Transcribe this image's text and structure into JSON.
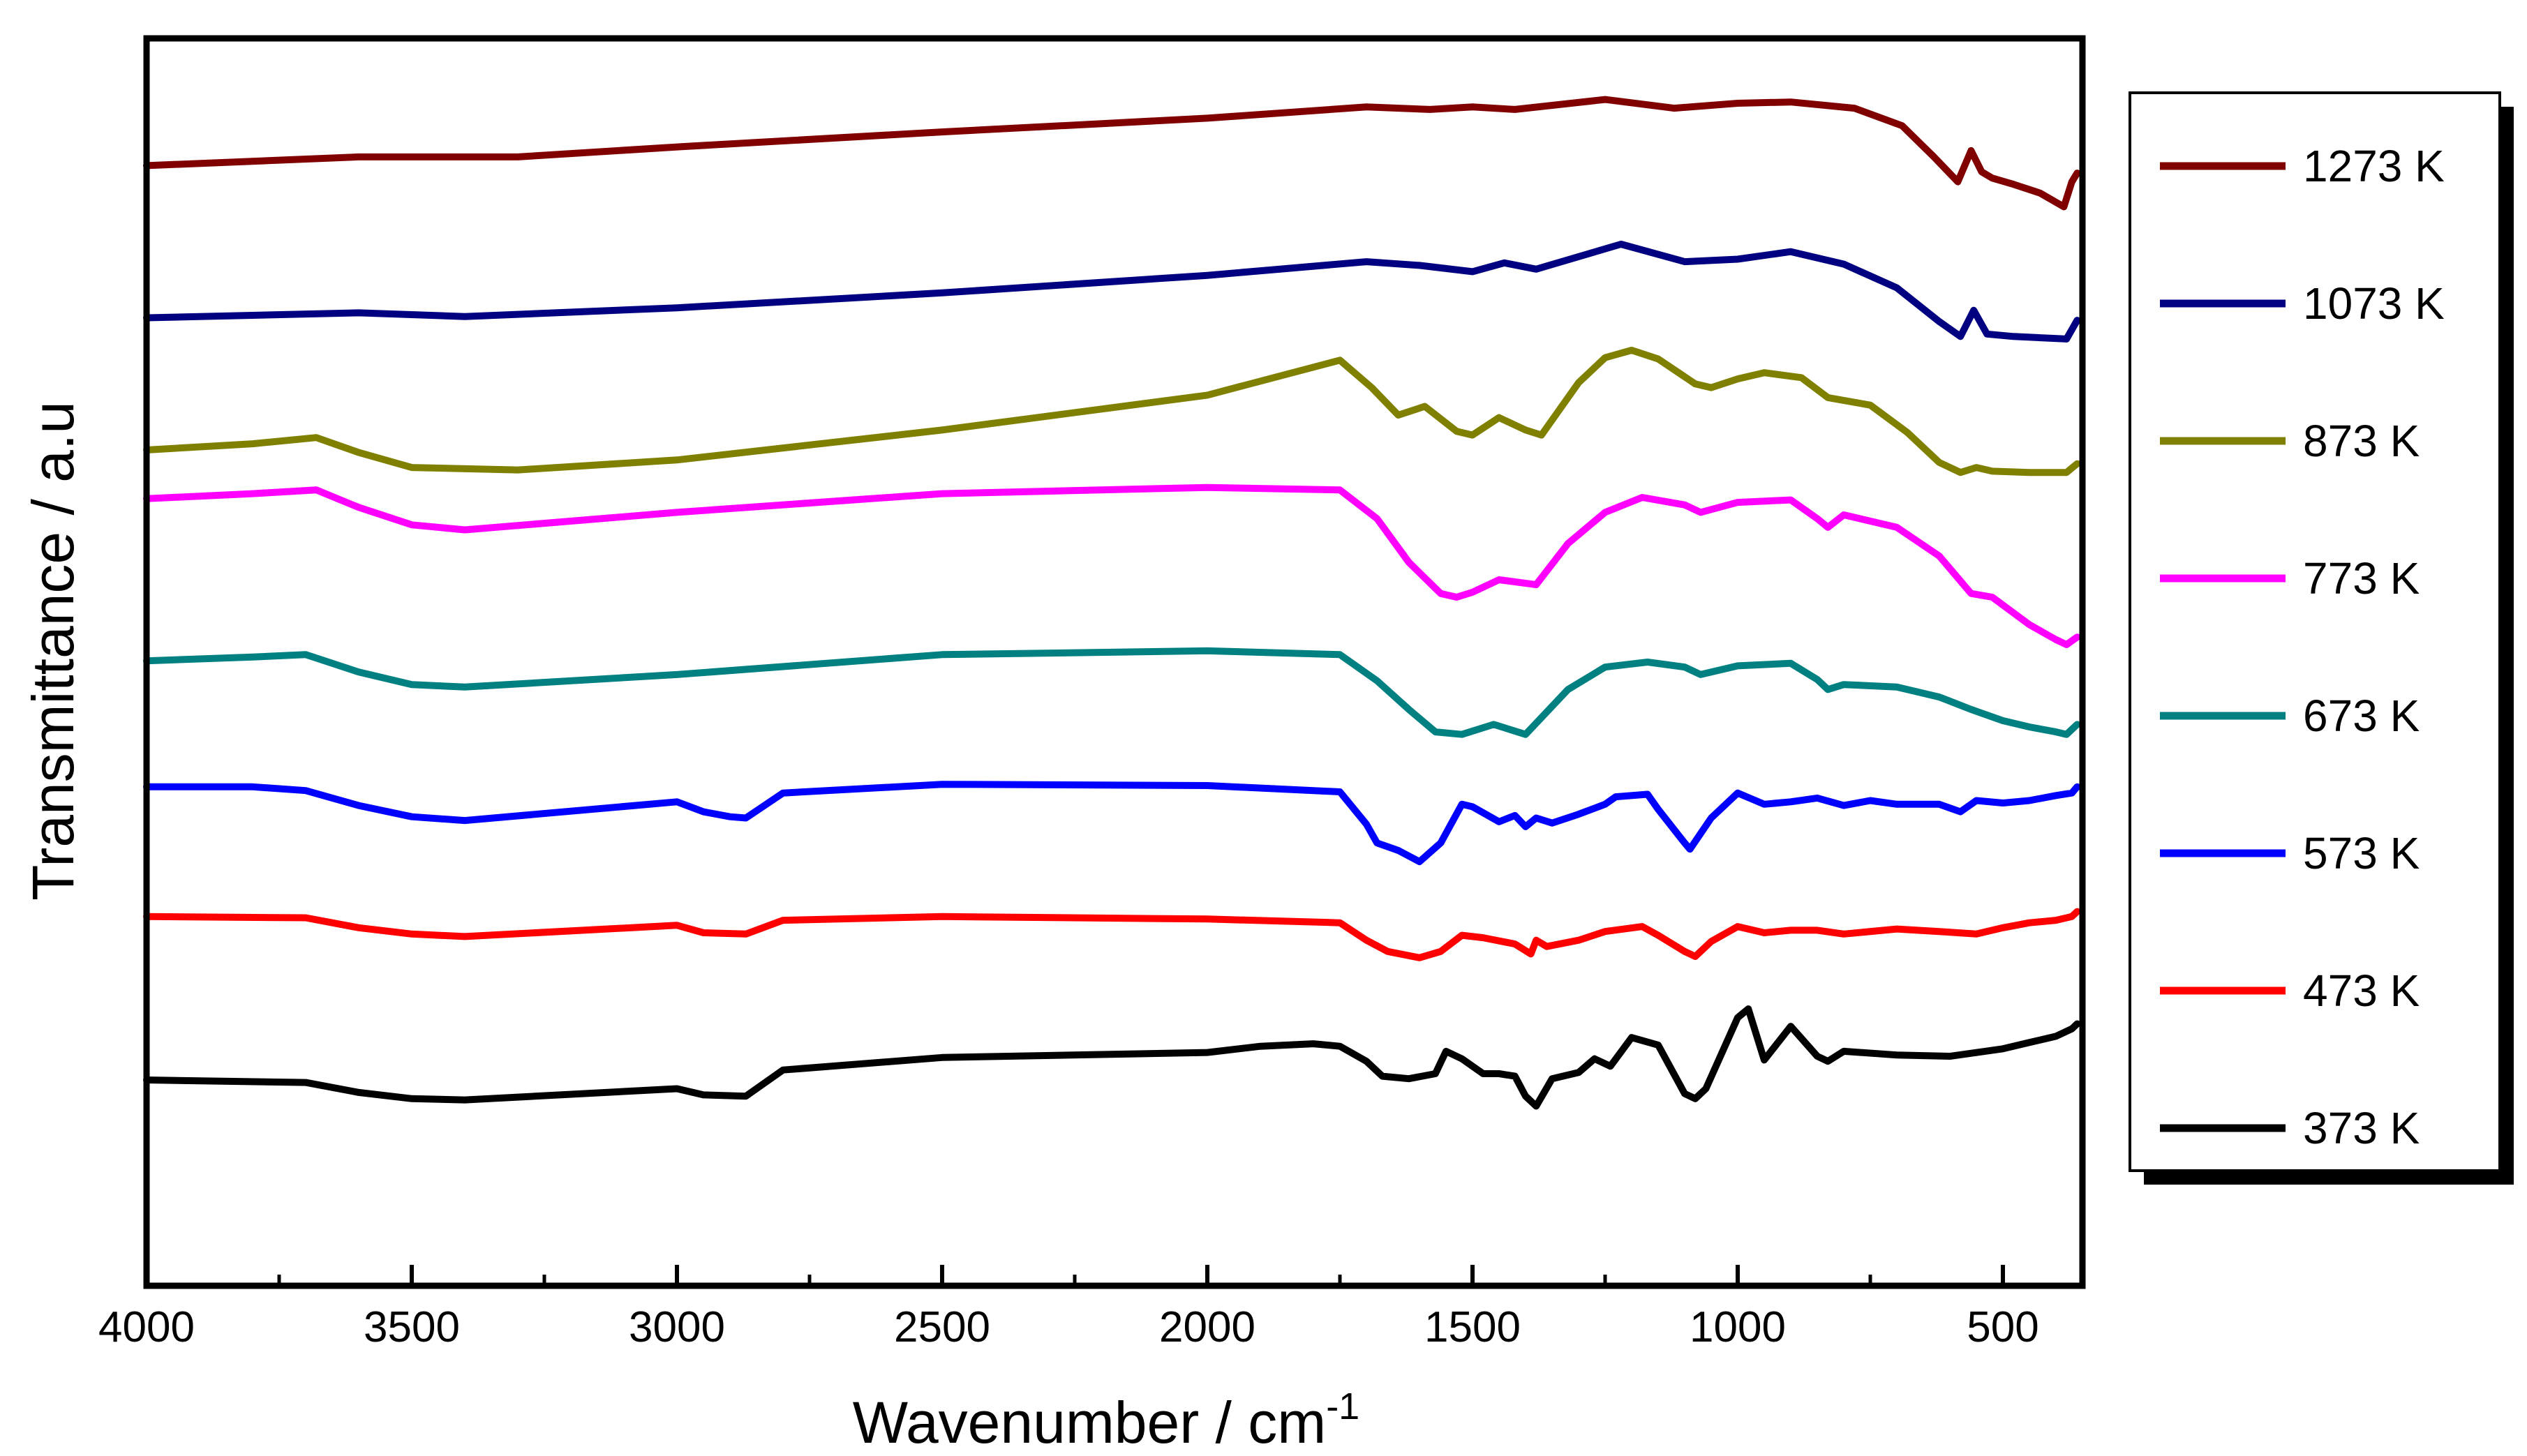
{
  "chart_data": {
    "type": "line",
    "title": "",
    "xlabel": "Wavenumber / cm",
    "xlabel_superscript": "-1",
    "ylabel": "Transmittance / a.u",
    "xlim": [
      4000,
      350
    ],
    "x_reversed": true,
    "ylim": [
      0,
      100
    ],
    "y_ticks_shown": false,
    "x_ticks": [
      4000,
      3500,
      3000,
      2500,
      2000,
      1500,
      1000,
      500
    ],
    "grid": false,
    "legend_position": "right",
    "series": [
      {
        "name": "1273 K",
        "color": "#800000",
        "x": [
          4000,
          3600,
          3300,
          3000,
          2500,
          2000,
          1700,
          1580,
          1500,
          1420,
          1250,
          1120,
          1000,
          900,
          780,
          690,
          630,
          585,
          560,
          540,
          520,
          480,
          430,
          385,
          370,
          360
        ],
        "y": [
          89.8,
          90.5,
          90.5,
          91.3,
          92.5,
          93.6,
          94.5,
          94.3,
          94.5,
          94.3,
          95.1,
          94.4,
          94.8,
          94.9,
          94.4,
          93.0,
          90.5,
          88.5,
          91.0,
          89.3,
          88.8,
          88.3,
          87.6,
          86.5,
          88.5,
          89.2
        ]
      },
      {
        "name": "1073 K",
        "color": "#000080",
        "x": [
          4000,
          3600,
          3400,
          3000,
          2500,
          2000,
          1700,
          1600,
          1500,
          1440,
          1380,
          1220,
          1100,
          1000,
          900,
          800,
          700,
          620,
          580,
          555,
          530,
          480,
          430,
          380,
          360
        ],
        "y": [
          77.6,
          78.0,
          77.7,
          78.4,
          79.6,
          81.0,
          82.1,
          81.8,
          81.3,
          82.0,
          81.5,
          83.5,
          82.1,
          82.3,
          82.9,
          81.9,
          80.0,
          77.3,
          76.1,
          78.2,
          76.3,
          76.1,
          76.0,
          75.9,
          77.4
        ]
      },
      {
        "name": "873 K",
        "color": "#808000",
        "x": [
          4000,
          3800,
          3680,
          3600,
          3500,
          3300,
          3000,
          2500,
          2000,
          1750,
          1690,
          1640,
          1590,
          1530,
          1500,
          1450,
          1400,
          1370,
          1300,
          1250,
          1200,
          1150,
          1080,
          1050,
          1000,
          950,
          880,
          830,
          750,
          680,
          620,
          580,
          550,
          520,
          450,
          380,
          360
        ],
        "y": [
          67.0,
          67.5,
          68.0,
          66.8,
          65.6,
          65.4,
          66.2,
          68.6,
          71.4,
          74.2,
          72.0,
          69.8,
          70.5,
          68.5,
          68.2,
          69.6,
          68.6,
          68.2,
          72.4,
          74.4,
          75.0,
          74.3,
          72.3,
          72.0,
          72.7,
          73.2,
          72.8,
          71.2,
          70.6,
          68.4,
          66.0,
          65.2,
          65.6,
          65.3,
          65.2,
          65.2,
          65.9
        ]
      },
      {
        "name": "773 K",
        "color": "#ff00ff",
        "x": [
          4000,
          3800,
          3680,
          3600,
          3500,
          3400,
          3000,
          2500,
          2000,
          1750,
          1680,
          1620,
          1560,
          1530,
          1500,
          1450,
          1380,
          1320,
          1250,
          1180,
          1100,
          1070,
          1000,
          900,
          850,
          830,
          800,
          700,
          620,
          560,
          520,
          450,
          400,
          380,
          360
        ],
        "y": [
          63.1,
          63.5,
          63.8,
          62.4,
          61.0,
          60.6,
          62.0,
          63.5,
          64.0,
          63.8,
          61.5,
          58.0,
          55.5,
          55.2,
          55.6,
          56.6,
          56.2,
          59.5,
          62.0,
          63.2,
          62.6,
          62.0,
          62.8,
          63.0,
          61.5,
          60.8,
          61.8,
          60.8,
          58.5,
          55.5,
          55.2,
          53.0,
          51.8,
          51.4,
          52.0
        ]
      },
      {
        "name": "673 K",
        "color": "#008080",
        "x": [
          4000,
          3800,
          3700,
          3600,
          3500,
          3400,
          3000,
          2500,
          2000,
          1750,
          1680,
          1620,
          1570,
          1520,
          1460,
          1400,
          1320,
          1250,
          1170,
          1100,
          1070,
          1000,
          900,
          850,
          830,
          800,
          700,
          620,
          560,
          500,
          450,
          400,
          380,
          360
        ],
        "y": [
          50.1,
          50.4,
          50.6,
          49.2,
          48.2,
          48.0,
          49.0,
          50.6,
          50.9,
          50.6,
          48.5,
          46.2,
          44.4,
          44.2,
          45.0,
          44.2,
          47.8,
          49.6,
          50.0,
          49.6,
          49.0,
          49.7,
          49.9,
          48.6,
          47.8,
          48.2,
          48.0,
          47.2,
          46.2,
          45.3,
          44.8,
          44.4,
          44.2,
          45.0
        ]
      },
      {
        "name": "573 K",
        "color": "#0000ff",
        "x": [
          4000,
          3800,
          3700,
          3600,
          3500,
          3400,
          3000,
          2950,
          2900,
          2870,
          2800,
          2500,
          2000,
          1750,
          1700,
          1680,
          1640,
          1600,
          1560,
          1520,
          1500,
          1450,
          1420,
          1400,
          1380,
          1350,
          1300,
          1250,
          1230,
          1170,
          1150,
          1100,
          1090,
          1050,
          1000,
          950,
          900,
          850,
          800,
          750,
          700,
          620,
          580,
          550,
          500,
          450,
          400,
          370,
          360
        ],
        "y": [
          40.0,
          40.0,
          39.7,
          38.5,
          37.6,
          37.3,
          38.8,
          38.0,
          37.6,
          37.5,
          39.5,
          40.2,
          40.1,
          39.6,
          37.0,
          35.5,
          34.9,
          34.0,
          35.5,
          38.6,
          38.4,
          37.2,
          37.7,
          36.8,
          37.5,
          37.1,
          37.8,
          38.6,
          39.2,
          39.4,
          38.2,
          35.5,
          35.0,
          37.5,
          39.5,
          38.6,
          38.8,
          39.1,
          38.5,
          38.9,
          38.6,
          38.6,
          38.0,
          38.9,
          38.7,
          38.9,
          39.3,
          39.5,
          40.0
        ]
      },
      {
        "name": "473 K",
        "color": "#ff0000",
        "x": [
          4000,
          3700,
          3600,
          3500,
          3400,
          3000,
          2950,
          2870,
          2800,
          2500,
          2000,
          1750,
          1700,
          1660,
          1600,
          1560,
          1520,
          1480,
          1420,
          1390,
          1380,
          1360,
          1300,
          1250,
          1180,
          1150,
          1100,
          1080,
          1050,
          1000,
          950,
          900,
          850,
          800,
          700,
          620,
          550,
          500,
          450,
          400,
          370,
          360
        ],
        "y": [
          29.6,
          29.5,
          28.7,
          28.2,
          28.0,
          28.9,
          28.3,
          28.2,
          29.3,
          29.6,
          29.4,
          29.1,
          27.7,
          26.8,
          26.3,
          26.8,
          28.1,
          27.9,
          27.4,
          26.6,
          27.7,
          27.2,
          27.7,
          28.4,
          28.8,
          28.1,
          26.8,
          26.4,
          27.6,
          28.8,
          28.3,
          28.5,
          28.5,
          28.2,
          28.6,
          28.4,
          28.2,
          28.7,
          29.1,
          29.3,
          29.6,
          30.0
        ]
      },
      {
        "name": "373 K",
        "color": "#000000",
        "x": [
          4000,
          3700,
          3600,
          3500,
          3400,
          3000,
          2950,
          2870,
          2800,
          2500,
          2000,
          1900,
          1800,
          1750,
          1700,
          1670,
          1620,
          1570,
          1550,
          1520,
          1480,
          1450,
          1420,
          1400,
          1380,
          1350,
          1300,
          1270,
          1240,
          1200,
          1150,
          1100,
          1080,
          1060,
          1000,
          980,
          950,
          900,
          850,
          830,
          800,
          700,
          600,
          500,
          450,
          400,
          370,
          360
        ],
        "y": [
          16.5,
          16.3,
          15.5,
          15.0,
          14.9,
          15.8,
          15.3,
          15.2,
          17.3,
          18.3,
          18.7,
          19.2,
          19.4,
          19.2,
          18.0,
          16.8,
          16.6,
          17.0,
          18.8,
          18.2,
          17.0,
          17.0,
          16.8,
          15.2,
          14.4,
          16.6,
          17.1,
          18.2,
          17.6,
          19.9,
          19.3,
          15.4,
          15.0,
          15.8,
          21.5,
          22.2,
          18.1,
          20.8,
          18.4,
          18.0,
          18.8,
          18.5,
          18.4,
          19.0,
          19.5,
          20.0,
          20.6,
          21.0
        ]
      }
    ]
  }
}
